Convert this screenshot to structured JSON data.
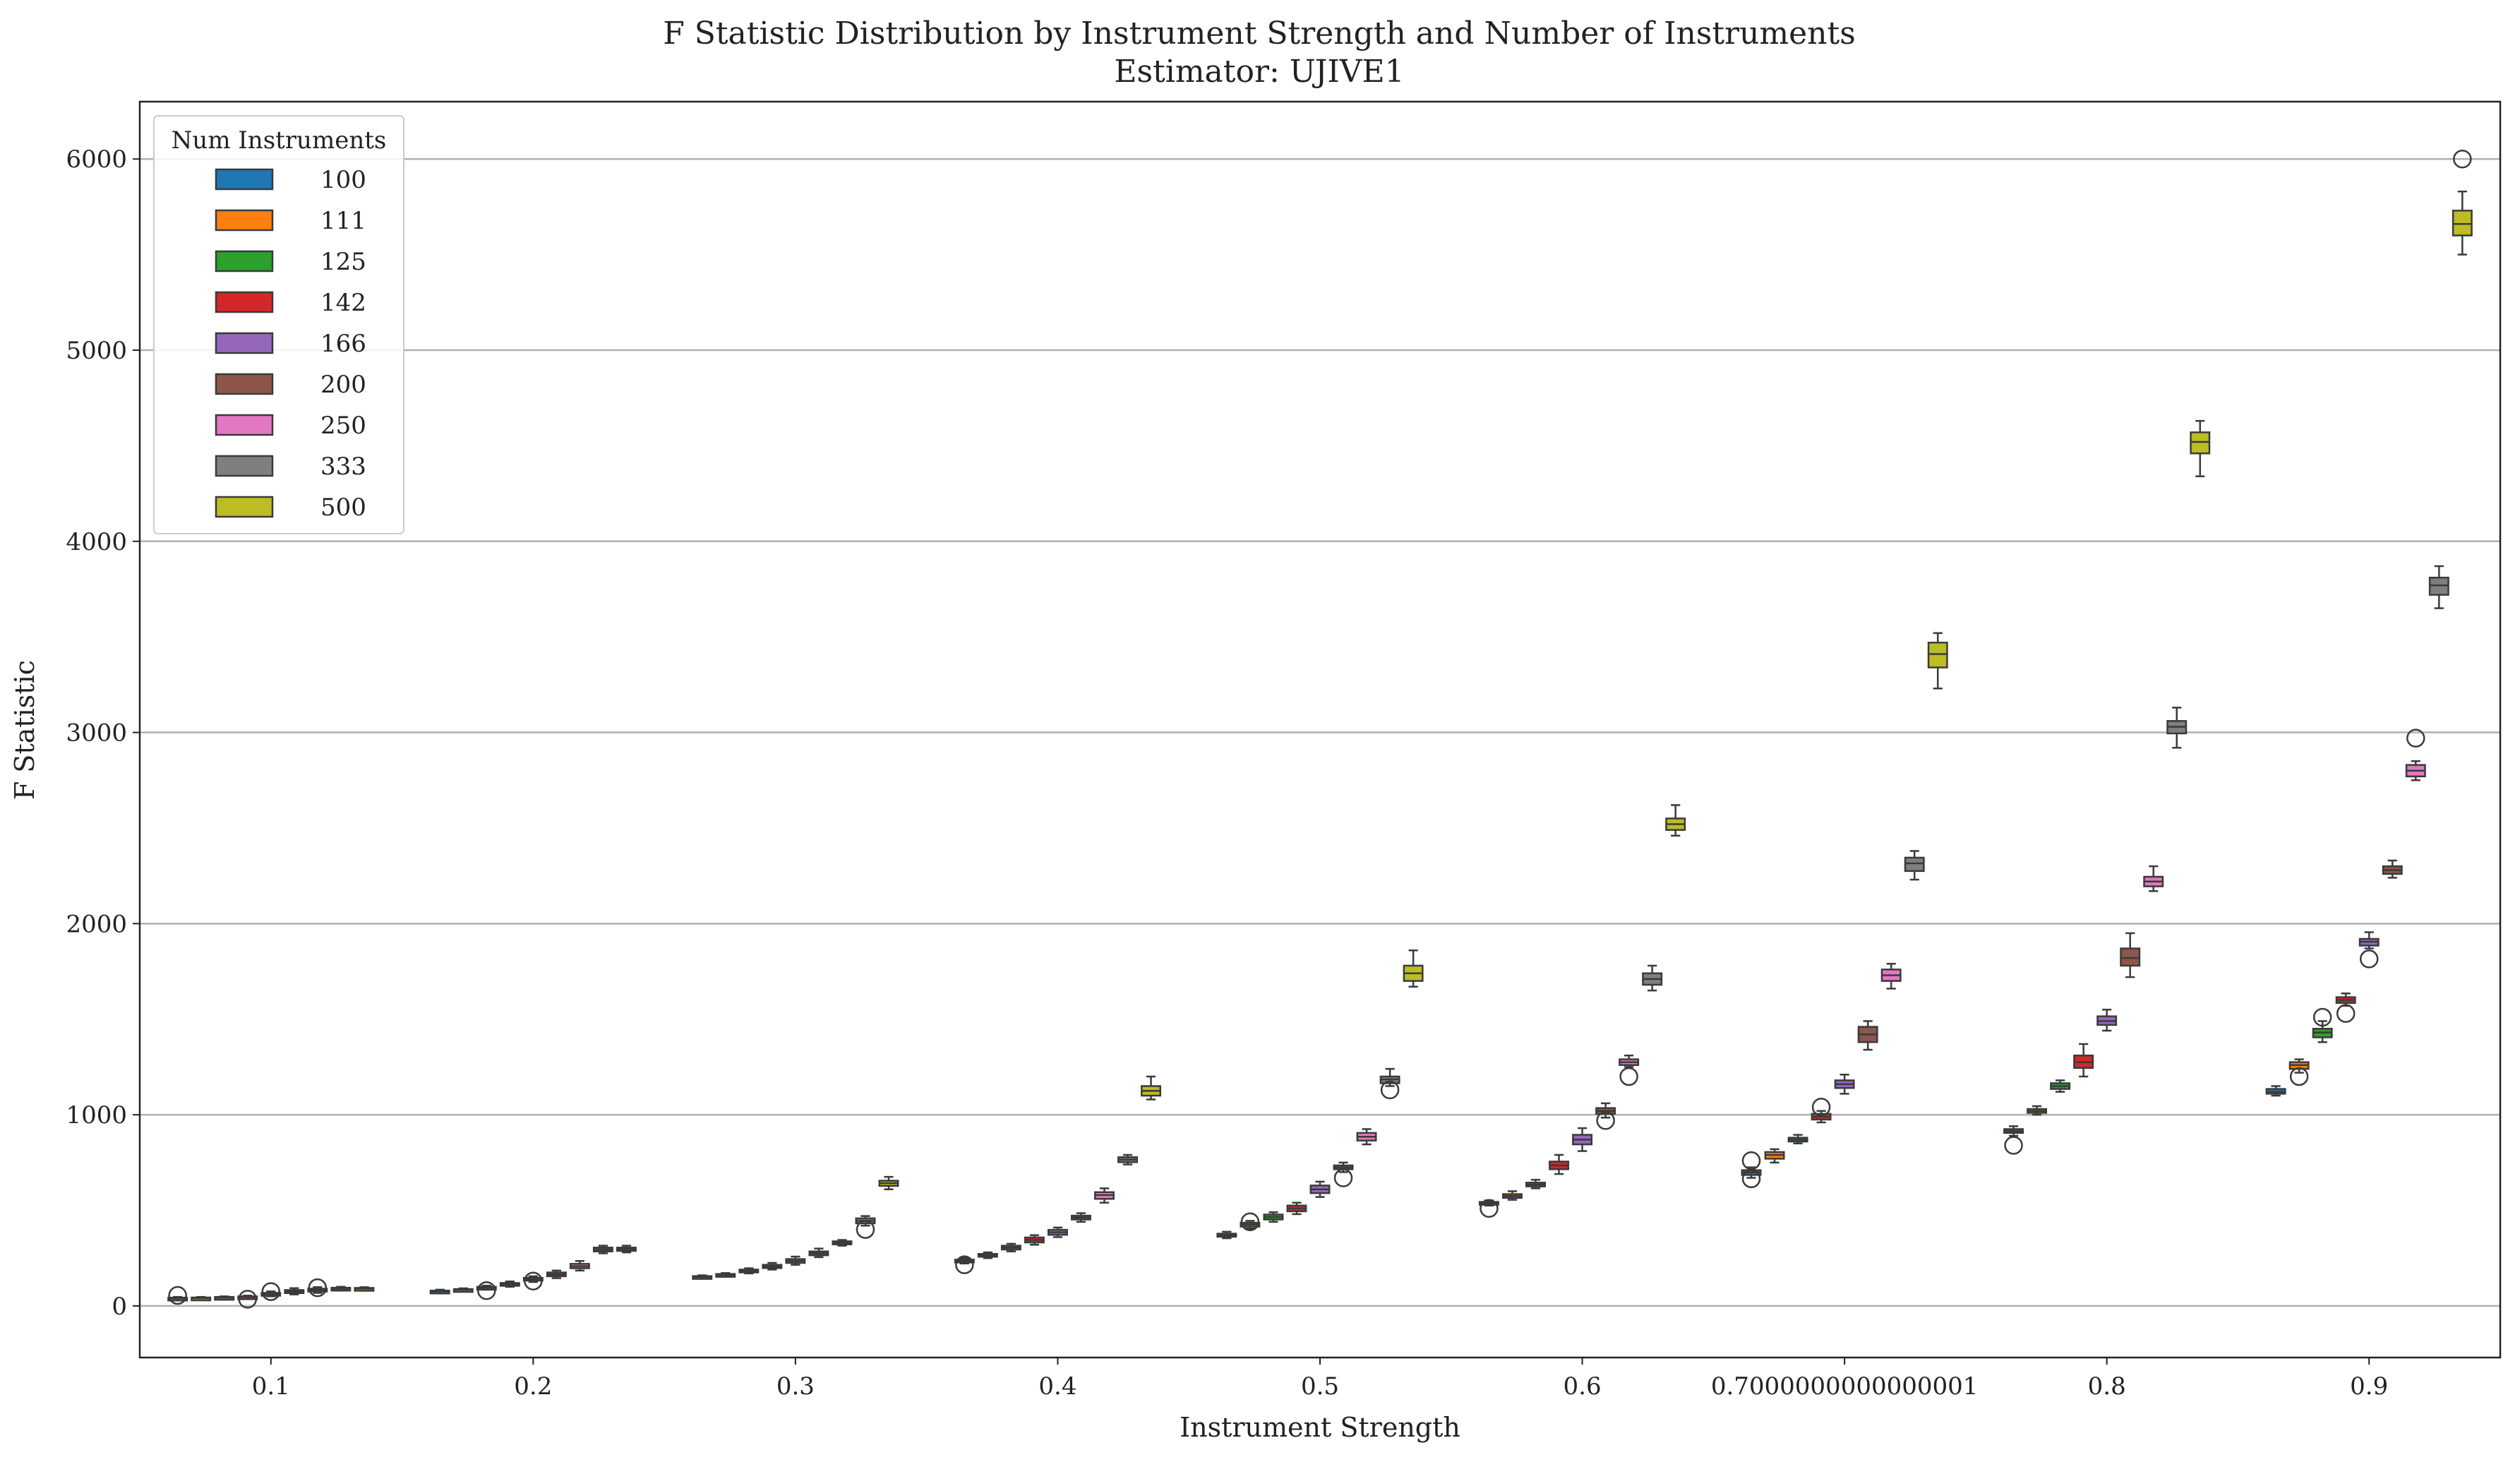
{
  "chart_data": {
    "type": "box",
    "title": "F Statistic Distribution by Instrument Strength and Number of Instruments",
    "subtitle": "Estimator: UJIVE1",
    "xlabel": "Instrument Strength",
    "ylabel": "F Statistic",
    "categories": [
      "0.1",
      "0.2",
      "0.3",
      "0.4",
      "0.5",
      "0.6",
      "0.7000000000000001",
      "0.8",
      "0.9"
    ],
    "ylim": [
      -270,
      6300
    ],
    "yticks": [
      "0",
      "1000",
      "2000",
      "3000",
      "4000",
      "5000",
      "6000"
    ],
    "ytick_values": [
      0,
      1000,
      2000,
      3000,
      4000,
      5000,
      6000
    ],
    "grid": "horizontal",
    "legend": {
      "title": "Num Instruments",
      "placement": "top-left",
      "entries": [
        "100",
        "111",
        "125",
        "142",
        "166",
        "200",
        "250",
        "333",
        "500"
      ]
    },
    "series": [
      {
        "name": "100",
        "color": "#1f77b4",
        "boxes": [
          [
            33,
            37,
            40,
            43,
            47
          ],
          [
            68,
            72,
            76,
            80,
            85
          ],
          [
            143,
            148,
            152,
            156,
            160
          ],
          [
            222,
            230,
            236,
            242,
            250
          ],
          [
            354,
            362,
            370,
            378,
            388
          ],
          [
            525,
            532,
            538,
            544,
            552
          ],
          [
            670,
            685,
            698,
            710,
            725
          ],
          [
            890,
            905,
            915,
            925,
            940
          ],
          [
            1100,
            1110,
            1120,
            1135,
            1150
          ]
        ],
        "outliers": [
          [
            55
          ],
          [],
          [],
          [
            215
          ],
          [],
          [
            510
          ],
          [
            665,
            760
          ],
          [
            840
          ],
          []
        ]
      },
      {
        "name": "111",
        "color": "#ff7f0e",
        "boxes": [
          [
            36,
            38,
            41,
            44,
            47
          ],
          [
            76,
            80,
            84,
            88,
            92
          ],
          [
            152,
            157,
            162,
            167,
            172
          ],
          [
            250,
            258,
            265,
            272,
            280
          ],
          [
            405,
            415,
            425,
            435,
            445
          ],
          [
            555,
            565,
            575,
            585,
            600
          ],
          [
            750,
            770,
            790,
            805,
            820
          ],
          [
            1000,
            1010,
            1020,
            1030,
            1045
          ],
          [
            1220,
            1240,
            1260,
            1275,
            1290
          ]
        ],
        "outliers": [
          [],
          [],
          [],
          [],
          [
            440
          ],
          [],
          [],
          [],
          [
            1200
          ]
        ]
      },
      {
        "name": "125",
        "color": "#2ca02c",
        "boxes": [
          [
            38,
            41,
            44,
            47,
            50
          ],
          [
            85,
            90,
            95,
            100,
            106
          ],
          [
            170,
            176,
            183,
            190,
            197
          ],
          [
            285,
            295,
            305,
            315,
            325
          ],
          [
            440,
            452,
            465,
            478,
            490
          ],
          [
            615,
            625,
            635,
            645,
            660
          ],
          [
            850,
            860,
            870,
            880,
            895
          ],
          [
            1120,
            1135,
            1150,
            1165,
            1180
          ],
          [
            1380,
            1405,
            1430,
            1450,
            1490
          ]
        ],
        "outliers": [
          [],
          [
            80
          ],
          [],
          [],
          [],
          [],
          [],
          [],
          [
            1510
          ]
        ]
      },
      {
        "name": "142",
        "color": "#d62728",
        "boxes": [
          [
            41,
            44,
            47,
            50,
            54
          ],
          [
            100,
            106,
            113,
            120,
            128
          ],
          [
            190,
            198,
            207,
            215,
            225
          ],
          [
            320,
            332,
            345,
            358,
            370
          ],
          [
            480,
            495,
            510,
            525,
            540
          ],
          [
            690,
            715,
            735,
            755,
            790
          ],
          [
            960,
            975,
            990,
            1005,
            1020
          ],
          [
            1200,
            1245,
            1275,
            1310,
            1370
          ],
          [
            1570,
            1585,
            1600,
            1615,
            1635
          ]
        ],
        "outliers": [
          [
            35
          ],
          [],
          [],
          [],
          [],
          [],
          [
            1040
          ],
          [],
          [
            1530
          ]
        ]
      },
      {
        "name": "166",
        "color": "#9467bd",
        "boxes": [
          [
            50,
            56,
            62,
            68,
            76
          ],
          [
            125,
            133,
            140,
            147,
            155
          ],
          [
            215,
            225,
            235,
            245,
            258
          ],
          [
            360,
            372,
            385,
            398,
            410
          ],
          [
            570,
            590,
            610,
            630,
            650
          ],
          [
            810,
            845,
            870,
            895,
            930
          ],
          [
            1110,
            1140,
            1160,
            1180,
            1210
          ],
          [
            1440,
            1470,
            1490,
            1515,
            1550
          ],
          [
            1870,
            1885,
            1905,
            1920,
            1955
          ]
        ],
        "outliers": [
          [
            75
          ],
          [
            130
          ],
          [],
          [],
          [],
          [],
          [],
          [],
          [
            1815
          ]
        ]
      },
      {
        "name": "200",
        "color": "#8c564b",
        "boxes": [
          [
            60,
            67,
            75,
            83,
            93
          ],
          [
            145,
            155,
            165,
            175,
            185
          ],
          [
            255,
            265,
            275,
            285,
            300
          ],
          [
            440,
            452,
            462,
            472,
            485
          ],
          [
            700,
            715,
            725,
            735,
            750
          ],
          [
            985,
            1005,
            1020,
            1035,
            1060
          ],
          [
            1340,
            1380,
            1420,
            1460,
            1490
          ],
          [
            1720,
            1780,
            1820,
            1870,
            1950
          ],
          [
            2240,
            2260,
            2280,
            2300,
            2330
          ]
        ],
        "outliers": [
          [],
          [],
          [],
          [],
          [
            670
          ],
          [
            970
          ],
          [],
          [],
          []
        ]
      },
      {
        "name": "250",
        "color": "#e377c2",
        "boxes": [
          [
            68,
            75,
            82,
            90,
            98
          ],
          [
            185,
            197,
            208,
            220,
            235
          ],
          [
            315,
            322,
            330,
            338,
            345
          ],
          [
            540,
            560,
            580,
            595,
            615
          ],
          [
            845,
            865,
            885,
            905,
            925
          ],
          [
            1250,
            1260,
            1275,
            1290,
            1310
          ],
          [
            1660,
            1700,
            1730,
            1760,
            1790
          ],
          [
            2170,
            2195,
            2220,
            2245,
            2300
          ],
          [
            2750,
            2770,
            2800,
            2830,
            2850
          ]
        ],
        "outliers": [
          [
            95
          ],
          [],
          [],
          [],
          [],
          [
            1200
          ],
          [],
          [],
          [
            2970
          ]
        ]
      },
      {
        "name": "333",
        "color": "#7f7f7f",
        "boxes": [
          [
            80,
            85,
            90,
            95,
            100
          ],
          [
            275,
            285,
            295,
            305,
            315
          ],
          [
            420,
            432,
            445,
            458,
            470
          ],
          [
            740,
            752,
            765,
            778,
            790
          ],
          [
            1150,
            1165,
            1185,
            1200,
            1240
          ],
          [
            1650,
            1680,
            1710,
            1740,
            1780
          ],
          [
            2230,
            2275,
            2315,
            2345,
            2380
          ],
          [
            2920,
            2995,
            3030,
            3060,
            3130
          ],
          [
            3650,
            3720,
            3770,
            3810,
            3870
          ]
        ],
        "outliers": [
          [],
          [],
          [
            400
          ],
          [],
          [
            1130
          ],
          [],
          [],
          [],
          []
        ]
      },
      {
        "name": "500",
        "color": "#bcbd22",
        "boxes": [
          [
            82,
            86,
            90,
            94,
            98
          ],
          [
            280,
            288,
            297,
            305,
            315
          ],
          [
            610,
            628,
            642,
            655,
            675
          ],
          [
            1080,
            1100,
            1125,
            1150,
            1200
          ],
          [
            1670,
            1700,
            1740,
            1780,
            1860
          ],
          [
            2460,
            2490,
            2520,
            2550,
            2620
          ],
          [
            3230,
            3340,
            3410,
            3470,
            3520
          ],
          [
            4340,
            4460,
            4520,
            4570,
            4630
          ],
          [
            5500,
            5600,
            5660,
            5730,
            5830
          ]
        ],
        "outliers": [
          [],
          [],
          [],
          [],
          [],
          [],
          [],
          [],
          [
            6000
          ]
        ]
      }
    ]
  }
}
